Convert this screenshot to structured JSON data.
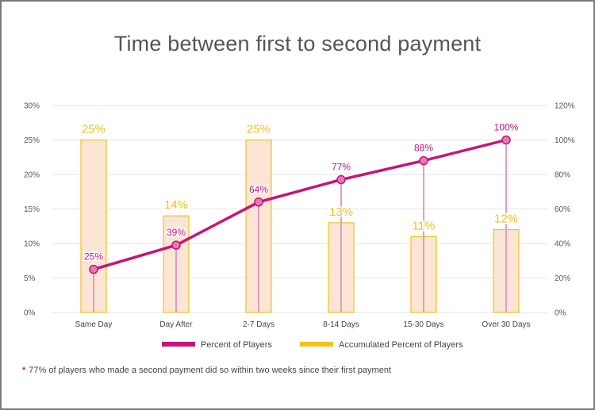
{
  "title": "Time between first to second payment",
  "footnote": {
    "marker": "*",
    "text": "77% of players who made a second payment did so within two weeks since their first payment"
  },
  "colors": {
    "bar_fill": "#fbe5d4",
    "bar_stroke": "#f2c21a",
    "bar_label": "#f2c21a",
    "line": "#c8137a",
    "line_label": "#c8137a",
    "drop_line": "#e69ac6",
    "marker_fill": "#e579b2",
    "grid": "#e6e6e6"
  },
  "chart_data": {
    "type": "bar",
    "title": "Time between first to second payment",
    "categories": [
      "Same Day",
      "Day After",
      "2-7 Days",
      "8-14 Days",
      "15-30 Days",
      "Over 30 Days"
    ],
    "series": [
      {
        "name": "Accumulated Percent of Players",
        "type": "bar",
        "axis": "left",
        "values": [
          25,
          14,
          25,
          13,
          11,
          12
        ],
        "labels": [
          "25%",
          "14%",
          "25%",
          "13%",
          "11%",
          "12%"
        ]
      },
      {
        "name": "Percent of Players",
        "type": "line",
        "axis": "right",
        "values": [
          25,
          39,
          64,
          77,
          88,
          100
        ],
        "labels": [
          "25%",
          "39%",
          "64%",
          "77%",
          "88%",
          "100%"
        ]
      }
    ],
    "left_axis": {
      "ylim": [
        0,
        30
      ],
      "ticks": [
        "0%",
        "5%",
        "10%",
        "15%",
        "20%",
        "25%",
        "30%"
      ]
    },
    "right_axis": {
      "ylim": [
        0,
        120
      ],
      "ticks": [
        "0%",
        "20%",
        "40%",
        "60%",
        "80%",
        "100%",
        "120%"
      ]
    },
    "grid": true,
    "legend": {
      "placement": "bottom",
      "items": [
        "Percent of Players",
        "Accumulated Percent of Players"
      ]
    }
  }
}
